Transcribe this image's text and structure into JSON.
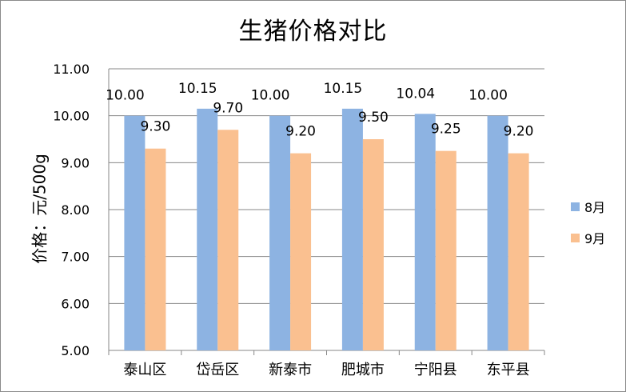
{
  "chart_data": {
    "type": "bar",
    "title": "生猪价格对比",
    "ylabel": "价格：元/500g",
    "xlabel": "",
    "categories": [
      "泰山区",
      "岱岳区",
      "新泰市",
      "肥城市",
      "宁阳县",
      "东平县"
    ],
    "series": [
      {
        "name": "8月",
        "color": "#8DB3E2",
        "values": [
          10.0,
          10.15,
          10.0,
          10.15,
          10.04,
          10.0
        ]
      },
      {
        "name": "9月",
        "color": "#FAC090",
        "values": [
          9.3,
          9.7,
          9.2,
          9.5,
          9.25,
          9.2
        ]
      }
    ],
    "ylim": [
      5.0,
      11.0
    ],
    "yticks": [
      "5.00",
      "6.00",
      "7.00",
      "8.00",
      "9.00",
      "10.00",
      "11.00"
    ],
    "grid": true,
    "legend": "right"
  }
}
